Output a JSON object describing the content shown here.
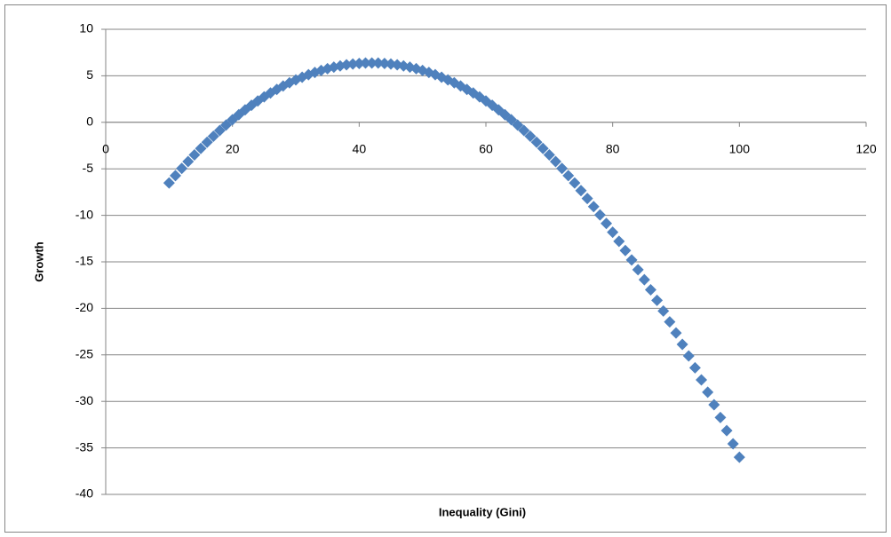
{
  "chart_data": {
    "type": "scatter",
    "x_label": "Inequality (Gini)",
    "y_label": "Growth",
    "xlim": [
      0,
      120
    ],
    "xticks": [
      0,
      20,
      40,
      60,
      80,
      100,
      120
    ],
    "ylim": [
      -40,
      10
    ],
    "yticks": [
      -40,
      -35,
      -30,
      -25,
      -20,
      -15,
      -10,
      -5,
      0,
      5,
      10
    ],
    "grid": true,
    "marker": "diamond",
    "series": [
      {
        "color": "#4f81bd",
        "x": [
          10,
          11,
          12,
          13,
          14,
          15,
          16,
          17,
          18,
          19,
          20,
          21,
          22,
          23,
          24,
          25,
          26,
          27,
          28,
          29,
          30,
          31,
          32,
          33,
          34,
          35,
          36,
          37,
          38,
          39,
          40,
          41,
          42,
          43,
          44,
          45,
          46,
          47,
          48,
          49,
          50,
          51,
          52,
          53,
          54,
          55,
          56,
          57,
          58,
          59,
          60,
          61,
          62,
          63,
          64,
          65,
          66,
          67,
          68,
          69,
          70,
          71,
          72,
          73,
          74,
          75,
          76,
          77,
          78,
          79,
          80,
          81,
          82,
          83,
          84,
          85,
          86,
          87,
          88,
          89,
          90,
          91,
          92,
          93,
          94,
          95,
          96,
          97,
          98,
          99,
          100
        ],
        "values": [
          -6.52,
          -5.73,
          -4.96,
          -4.22,
          -3.5,
          -2.81,
          -2.14,
          -1.5,
          -0.88,
          -0.29,
          0.28,
          0.82,
          1.34,
          1.83,
          2.3,
          2.74,
          3.15,
          3.54,
          3.91,
          4.25,
          4.56,
          4.85,
          5.12,
          5.36,
          5.57,
          5.76,
          5.93,
          6.06,
          6.18,
          6.27,
          6.33,
          6.37,
          6.38,
          6.37,
          6.33,
          6.27,
          6.18,
          6.06,
          5.93,
          5.76,
          5.57,
          5.36,
          5.12,
          4.85,
          4.56,
          4.25,
          3.91,
          3.54,
          3.15,
          2.74,
          2.3,
          1.83,
          1.34,
          0.82,
          0.28,
          -0.29,
          -0.88,
          -1.5,
          -2.14,
          -2.81,
          -3.5,
          -4.22,
          -4.96,
          -5.73,
          -6.52,
          -7.34,
          -8.19,
          -9.06,
          -9.95,
          -10.87,
          -11.82,
          -12.79,
          -13.78,
          -14.8,
          -15.85,
          -16.92,
          -18.01,
          -19.14,
          -20.28,
          -21.45,
          -22.65,
          -23.87,
          -25.12,
          -26.39,
          -27.69,
          -29.01,
          -30.36,
          -31.74,
          -33.14,
          -34.56,
          -36.01
        ]
      }
    ]
  }
}
